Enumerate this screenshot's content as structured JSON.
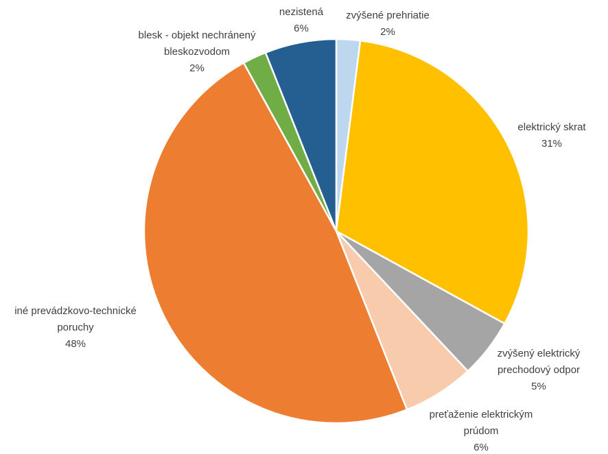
{
  "chart_data": {
    "type": "pie",
    "title": "",
    "slices": [
      {
        "label": [
          "zvýšené prehriatie"
        ],
        "value": 2,
        "value_label": "2%",
        "color": "#BDD7EE"
      },
      {
        "label": [
          "elektrický skrat"
        ],
        "value": 31,
        "value_label": "31%",
        "color": "#FFC000"
      },
      {
        "label": [
          "zvýšený elektrický",
          "prechodový odpor"
        ],
        "value": 5,
        "value_label": "5%",
        "color": "#A5A5A5"
      },
      {
        "label": [
          "preťaženie elektrickým",
          "prúdom"
        ],
        "value": 6,
        "value_label": "6%",
        "color": "#F8CBAD"
      },
      {
        "label": [
          "iné prevádzkovo-technické",
          "poruchy"
        ],
        "value": 48,
        "value_label": "48%",
        "color": "#ED7D31"
      },
      {
        "label": [
          "blesk - objekt nechránený",
          "bleskozvodom"
        ],
        "value": 2,
        "value_label": "2%",
        "color": "#70AD47"
      },
      {
        "label": [
          "nezistená"
        ],
        "value": 6,
        "value_label": "6%",
        "color": "#255E91"
      }
    ]
  }
}
